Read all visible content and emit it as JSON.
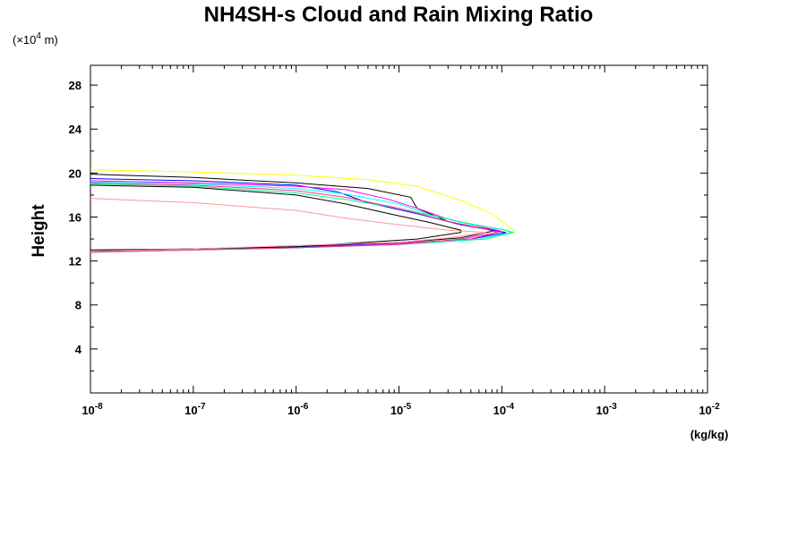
{
  "chart_data": {
    "type": "line",
    "title": "NH4SH-s Cloud and Rain Mixing Ratio",
    "ylabel": "Height",
    "y_unit_prefix": "(×10",
    "y_unit_exp": "4",
    "y_unit_suffix": " m)",
    "xlabel": "(kg/kg)",
    "x_scale": "log",
    "xlim": [
      1e-08,
      0.01
    ],
    "ylim": [
      0,
      29.8
    ],
    "x_ticks": [
      {
        "base": "10",
        "exp": "-8"
      },
      {
        "base": "10",
        "exp": "-7"
      },
      {
        "base": "10",
        "exp": "-6"
      },
      {
        "base": "10",
        "exp": "-5"
      },
      {
        "base": "10",
        "exp": "-4"
      },
      {
        "base": "10",
        "exp": "-3"
      },
      {
        "base": "10",
        "exp": "-2"
      }
    ],
    "y_ticks": [
      "4",
      "8",
      "12",
      "16",
      "20",
      "24",
      "28"
    ],
    "series": [
      {
        "color": "#ffff00",
        "points": [
          [
            1e-08,
            20.3
          ],
          [
            1e-07,
            20.1
          ],
          [
            1e-06,
            19.8
          ],
          [
            5e-06,
            19.4
          ],
          [
            1.5e-05,
            18.8
          ],
          [
            4e-05,
            17.5
          ],
          [
            8e-05,
            16.3
          ],
          [
            0.00013,
            14.8
          ],
          [
            0.00012,
            14.6
          ],
          [
            5e-05,
            14.0
          ],
          [
            1e-05,
            13.6
          ],
          [
            1e-06,
            13.3
          ],
          [
            1e-07,
            13.1
          ],
          [
            1e-08,
            12.9
          ]
        ]
      },
      {
        "color": "#000000",
        "points": [
          [
            1e-08,
            19.9
          ],
          [
            1e-07,
            19.6
          ],
          [
            1e-06,
            19.1
          ],
          [
            5e-06,
            18.6
          ],
          [
            1.3e-05,
            17.8
          ],
          [
            1.5e-05,
            16.8
          ],
          [
            3e-05,
            15.6
          ],
          [
            6e-05,
            15.0
          ],
          [
            9e-05,
            14.8
          ],
          [
            4e-05,
            14.1
          ],
          [
            1e-05,
            13.7
          ],
          [
            1e-06,
            13.3
          ],
          [
            1e-07,
            13.1
          ],
          [
            1e-08,
            12.9
          ]
        ]
      },
      {
        "color": "#0000ff",
        "points": [
          [
            1e-08,
            19.5
          ],
          [
            1e-07,
            19.3
          ],
          [
            1e-06,
            18.9
          ],
          [
            2.5e-06,
            18.3
          ],
          [
            5e-06,
            17.3
          ],
          [
            1.5e-05,
            16.3
          ],
          [
            4e-05,
            15.3
          ],
          [
            8e-05,
            14.8
          ],
          [
            0.00011,
            14.6
          ],
          [
            5e-05,
            14.0
          ],
          [
            1e-05,
            13.6
          ],
          [
            1e-06,
            13.3
          ],
          [
            1e-07,
            13.1
          ],
          [
            1e-08,
            12.9
          ]
        ]
      },
      {
        "color": "#ff00ff",
        "points": [
          [
            1e-08,
            19.3
          ],
          [
            1e-07,
            19.1
          ],
          [
            1e-06,
            18.8
          ],
          [
            3e-06,
            18.5
          ],
          [
            8e-06,
            17.6
          ],
          [
            1.5e-05,
            16.8
          ],
          [
            3e-05,
            15.8
          ],
          [
            7e-05,
            15.0
          ],
          [
            0.0001,
            14.7
          ],
          [
            5e-05,
            14.0
          ],
          [
            1e-05,
            13.6
          ],
          [
            1e-06,
            13.2
          ],
          [
            1e-07,
            13.0
          ],
          [
            1e-08,
            12.8
          ]
        ]
      },
      {
        "color": "#00ffff",
        "points": [
          [
            1e-08,
            19.2
          ],
          [
            1e-07,
            19.0
          ],
          [
            1e-06,
            18.6
          ],
          [
            3e-06,
            18.1
          ],
          [
            1e-05,
            17.2
          ],
          [
            2e-05,
            16.2
          ],
          [
            5e-05,
            15.3
          ],
          [
            0.0001,
            14.9
          ],
          [
            0.000125,
            14.6
          ],
          [
            6e-05,
            14.0
          ],
          [
            1e-05,
            13.5
          ],
          [
            1e-06,
            13.2
          ],
          [
            1e-07,
            13.0
          ],
          [
            1e-08,
            12.8
          ]
        ]
      },
      {
        "color": "#00ff7f",
        "points": [
          [
            1e-08,
            19.0
          ],
          [
            1e-07,
            18.8
          ],
          [
            1e-06,
            18.2
          ],
          [
            3e-06,
            17.6
          ],
          [
            1e-05,
            16.8
          ],
          [
            3e-05,
            15.8
          ],
          [
            7e-05,
            15.1
          ],
          [
            0.00011,
            14.8
          ],
          [
            0.00013,
            14.6
          ],
          [
            7e-05,
            14.0
          ],
          [
            1e-05,
            13.5
          ],
          [
            1e-06,
            13.2
          ],
          [
            1e-07,
            13.0
          ],
          [
            1e-08,
            12.8
          ]
        ]
      },
      {
        "color": "#ff3399",
        "points": [
          [
            1e-08,
            19.1
          ],
          [
            1e-07,
            18.9
          ],
          [
            1e-06,
            18.4
          ],
          [
            3e-06,
            17.8
          ],
          [
            1e-05,
            16.8
          ],
          [
            3e-05,
            15.6
          ],
          [
            7e-05,
            14.9
          ],
          [
            9e-05,
            14.6
          ],
          [
            4e-05,
            14.0
          ],
          [
            1e-05,
            13.5
          ],
          [
            1e-06,
            13.2
          ],
          [
            1e-07,
            13.0
          ],
          [
            1e-08,
            12.8
          ]
        ]
      },
      {
        "color": "#000000",
        "points": [
          [
            1e-08,
            18.9
          ],
          [
            1e-07,
            18.7
          ],
          [
            1e-06,
            18.0
          ],
          [
            3e-06,
            17.2
          ],
          [
            8e-06,
            16.3
          ],
          [
            2e-05,
            15.5
          ],
          [
            4e-05,
            14.8
          ],
          [
            4e-05,
            14.6
          ],
          [
            1.5e-05,
            14.0
          ],
          [
            1e-06,
            13.3
          ],
          [
            1e-07,
            13.1
          ],
          [
            1e-08,
            13.0
          ]
        ]
      },
      {
        "color": "#ff9999",
        "points": [
          [
            1e-08,
            17.7
          ],
          [
            1e-07,
            17.3
          ],
          [
            1e-06,
            16.6
          ],
          [
            3e-06,
            15.9
          ],
          [
            1e-05,
            15.3
          ],
          [
            3e-05,
            14.8
          ],
          [
            7e-05,
            14.6
          ],
          [
            3e-05,
            14.1
          ],
          [
            1e-05,
            13.7
          ],
          [
            1e-06,
            13.4
          ],
          [
            1e-07,
            13.1
          ],
          [
            1e-08,
            12.9
          ]
        ]
      }
    ]
  }
}
